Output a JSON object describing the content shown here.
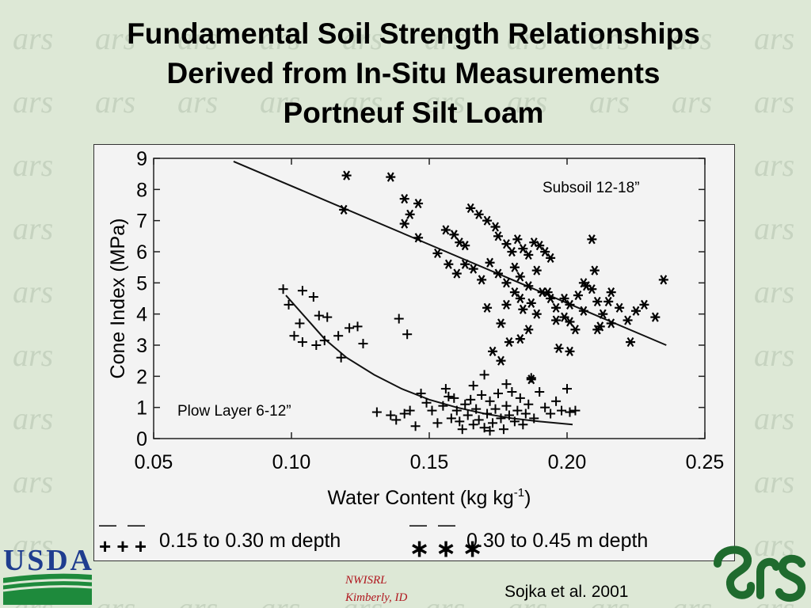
{
  "slide": {
    "title_lines": [
      "Fundamental Soil Strength Relationships",
      "Derived from In-Situ Measurements",
      "Portneuf Silt Loam"
    ],
    "lab_lines": [
      "NWISRL",
      "Kimberly, ID"
    ],
    "citation": "Sojka et al. 2001",
    "usda_text": "USDA",
    "watermark_text": "ars",
    "colors": {
      "background": "#dde8d6",
      "usda_blue": "#1f3d8f",
      "usda_green": "#1e8a3c",
      "ars_green": "#1f6b2e",
      "lab_red": "#b0171f"
    }
  },
  "chart_data": {
    "type": "scatter",
    "xlabel": "Water Content (kg kg",
    "xlabel_sup": "-1",
    "xlabel_close": ")",
    "ylabel": "Cone Index (MPa)",
    "xlim": [
      0.05,
      0.25
    ],
    "ylim": [
      0,
      9
    ],
    "xticks": [
      "0.05",
      "0.10",
      "0.15",
      "0.20",
      "0.25"
    ],
    "yticks": [
      "0",
      "1",
      "2",
      "3",
      "4",
      "5",
      "6",
      "7",
      "8",
      "9"
    ],
    "annotations": [
      "Subsoil 12-18”",
      "Plow Layer 6-12”"
    ],
    "legend": [
      {
        "line": "——",
        "marker": "+ + +",
        "label": "0.15 to 0.30 m depth"
      },
      {
        "line": "——",
        "marker": "∗ ∗ ∗",
        "label": "0.30 to 0.45 m depth"
      }
    ],
    "series": [
      {
        "marker": "+",
        "fit": [
          [
            0.098,
            4.6
          ],
          [
            0.105,
            3.9
          ],
          [
            0.112,
            3.2
          ],
          [
            0.12,
            2.6
          ],
          [
            0.13,
            2.05
          ],
          [
            0.14,
            1.6
          ],
          [
            0.15,
            1.25
          ],
          [
            0.16,
            1.0
          ],
          [
            0.17,
            0.8
          ],
          [
            0.18,
            0.65
          ],
          [
            0.19,
            0.55
          ],
          [
            0.202,
            0.45
          ]
        ],
        "points": [
          [
            0.097,
            4.8
          ],
          [
            0.104,
            4.75
          ],
          [
            0.108,
            4.55
          ],
          [
            0.099,
            4.3
          ],
          [
            0.103,
            3.7
          ],
          [
            0.11,
            3.95
          ],
          [
            0.113,
            3.9
          ],
          [
            0.101,
            3.3
          ],
          [
            0.104,
            3.1
          ],
          [
            0.109,
            3.0
          ],
          [
            0.112,
            3.15
          ],
          [
            0.117,
            3.3
          ],
          [
            0.121,
            3.55
          ],
          [
            0.124,
            3.6
          ],
          [
            0.126,
            3.05
          ],
          [
            0.118,
            2.6
          ],
          [
            0.139,
            3.85
          ],
          [
            0.142,
            3.35
          ],
          [
            0.131,
            0.85
          ],
          [
            0.136,
            0.75
          ],
          [
            0.138,
            0.6
          ],
          [
            0.141,
            0.8
          ],
          [
            0.143,
            0.9
          ],
          [
            0.145,
            0.4
          ],
          [
            0.147,
            1.45
          ],
          [
            0.149,
            1.15
          ],
          [
            0.151,
            0.9
          ],
          [
            0.153,
            0.5
          ],
          [
            0.155,
            1.05
          ],
          [
            0.156,
            1.6
          ],
          [
            0.157,
            1.35
          ],
          [
            0.158,
            0.65
          ],
          [
            0.16,
            0.9
          ],
          [
            0.161,
            0.55
          ],
          [
            0.162,
            0.3
          ],
          [
            0.163,
            1.1
          ],
          [
            0.164,
            0.75
          ],
          [
            0.165,
            1.25
          ],
          [
            0.166,
            0.45
          ],
          [
            0.167,
            0.95
          ],
          [
            0.168,
            0.6
          ],
          [
            0.169,
            1.4
          ],
          [
            0.17,
            0.35
          ],
          [
            0.17,
            2.05
          ],
          [
            0.171,
            0.8
          ],
          [
            0.172,
            1.2
          ],
          [
            0.173,
            0.5
          ],
          [
            0.174,
            0.95
          ],
          [
            0.175,
            1.45
          ],
          [
            0.176,
            0.65
          ],
          [
            0.177,
            0.3
          ],
          [
            0.178,
            1.05
          ],
          [
            0.179,
            0.75
          ],
          [
            0.18,
            1.5
          ],
          [
            0.181,
            0.55
          ],
          [
            0.182,
            0.9
          ],
          [
            0.183,
            1.3
          ],
          [
            0.184,
            0.45
          ],
          [
            0.185,
            0.8
          ],
          [
            0.186,
            1.1
          ],
          [
            0.187,
            1.95
          ],
          [
            0.188,
            0.65
          ],
          [
            0.19,
            1.5
          ],
          [
            0.192,
            1.0
          ],
          [
            0.194,
            0.8
          ],
          [
            0.196,
            1.2
          ],
          [
            0.198,
            0.9
          ],
          [
            0.2,
            1.6
          ],
          [
            0.201,
            0.85
          ],
          [
            0.203,
            0.9
          ],
          [
            0.166,
            1.7
          ],
          [
            0.178,
            1.75
          ],
          [
            0.159,
            1.3
          ],
          [
            0.172,
            0.25
          ]
        ]
      },
      {
        "marker": "*",
        "fit": [
          [
            0.079,
            8.9
          ],
          [
            0.236,
            3.0
          ]
        ],
        "points": [
          [
            0.12,
            8.45
          ],
          [
            0.136,
            8.4
          ],
          [
            0.141,
            7.7
          ],
          [
            0.146,
            7.55
          ],
          [
            0.143,
            7.2
          ],
          [
            0.141,
            6.9
          ],
          [
            0.119,
            7.35
          ],
          [
            0.146,
            6.45
          ],
          [
            0.156,
            6.7
          ],
          [
            0.159,
            6.55
          ],
          [
            0.161,
            6.3
          ],
          [
            0.163,
            6.2
          ],
          [
            0.165,
            7.4
          ],
          [
            0.168,
            7.2
          ],
          [
            0.171,
            7.0
          ],
          [
            0.174,
            6.8
          ],
          [
            0.175,
            6.5
          ],
          [
            0.178,
            6.25
          ],
          [
            0.18,
            6.0
          ],
          [
            0.182,
            6.4
          ],
          [
            0.184,
            6.1
          ],
          [
            0.186,
            5.9
          ],
          [
            0.188,
            6.3
          ],
          [
            0.19,
            6.2
          ],
          [
            0.192,
            6.0
          ],
          [
            0.194,
            5.8
          ],
          [
            0.153,
            5.95
          ],
          [
            0.157,
            5.6
          ],
          [
            0.16,
            5.3
          ],
          [
            0.163,
            5.6
          ],
          [
            0.166,
            5.45
          ],
          [
            0.169,
            5.1
          ],
          [
            0.172,
            5.65
          ],
          [
            0.175,
            5.3
          ],
          [
            0.178,
            5.0
          ],
          [
            0.181,
            5.5
          ],
          [
            0.183,
            5.2
          ],
          [
            0.186,
            4.9
          ],
          [
            0.189,
            5.4
          ],
          [
            0.191,
            4.7
          ],
          [
            0.194,
            4.5
          ],
          [
            0.196,
            4.2
          ],
          [
            0.199,
            4.5
          ],
          [
            0.201,
            4.3
          ],
          [
            0.204,
            4.6
          ],
          [
            0.206,
            4.1
          ],
          [
            0.209,
            4.8
          ],
          [
            0.211,
            4.4
          ],
          [
            0.213,
            4.0
          ],
          [
            0.216,
            4.7
          ],
          [
            0.219,
            4.2
          ],
          [
            0.222,
            3.8
          ],
          [
            0.225,
            4.1
          ],
          [
            0.228,
            4.3
          ],
          [
            0.232,
            3.9
          ],
          [
            0.235,
            5.1
          ],
          [
            0.209,
            6.4
          ],
          [
            0.21,
            5.4
          ],
          [
            0.206,
            5.0
          ],
          [
            0.199,
            3.9
          ],
          [
            0.201,
            3.75
          ],
          [
            0.203,
            3.5
          ],
          [
            0.197,
            2.9
          ],
          [
            0.201,
            2.8
          ],
          [
            0.223,
            3.1
          ],
          [
            0.171,
            4.2
          ],
          [
            0.176,
            3.7
          ],
          [
            0.179,
            3.1
          ],
          [
            0.183,
            3.2
          ],
          [
            0.186,
            3.5
          ],
          [
            0.173,
            2.8
          ],
          [
            0.176,
            2.5
          ],
          [
            0.187,
            1.9
          ],
          [
            0.189,
            4.0
          ],
          [
            0.184,
            4.15
          ],
          [
            0.181,
            4.7
          ],
          [
            0.178,
            4.3
          ],
          [
            0.212,
            3.6
          ],
          [
            0.216,
            3.7
          ],
          [
            0.215,
            4.4
          ],
          [
            0.207,
            4.9
          ],
          [
            0.187,
            4.35
          ],
          [
            0.193,
            4.7
          ],
          [
            0.196,
            3.8
          ],
          [
            0.211,
            3.5
          ],
          [
            0.183,
            4.5
          ]
        ]
      }
    ]
  }
}
